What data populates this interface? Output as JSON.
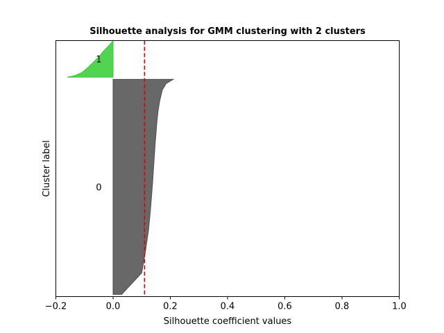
{
  "chart_data": {
    "type": "area",
    "title": "Silhouette analysis for GMM clustering with 2 clusters",
    "xlabel": "Silhouette coefficient values",
    "ylabel": "Cluster label",
    "xlim": [
      -0.2,
      1.0
    ],
    "xticks": [
      "−0.2",
      "0.0",
      "0.2",
      "0.4",
      "0.6",
      "0.8",
      "1.0"
    ],
    "average_silhouette": 0.11,
    "grid": false,
    "clusters": [
      {
        "label": "0",
        "color": "#4d4d4d",
        "sample_range": [
          0,
          1000
        ],
        "profile_fraction": [
          0,
          0.1,
          0.2,
          0.3,
          0.4,
          0.5,
          0.6,
          0.7,
          0.8,
          0.85,
          0.9,
          0.95,
          0.98,
          1.0
        ],
        "profile_value": [
          0.03,
          0.1,
          0.113,
          0.124,
          0.131,
          0.137,
          0.142,
          0.147,
          0.153,
          0.157,
          0.163,
          0.172,
          0.185,
          0.21
        ]
      },
      {
        "label": "1",
        "color": "#33cc33",
        "sample_range": [
          1000,
          1170
        ],
        "profile_fraction": [
          0,
          0.04,
          0.12,
          0.25,
          0.4,
          0.55,
          0.7,
          0.82,
          0.92,
          1.0
        ],
        "profile_value": [
          -0.16,
          -0.135,
          -0.11,
          -0.09,
          -0.07,
          -0.05,
          -0.035,
          -0.02,
          -0.008,
          0.0
        ]
      }
    ]
  }
}
